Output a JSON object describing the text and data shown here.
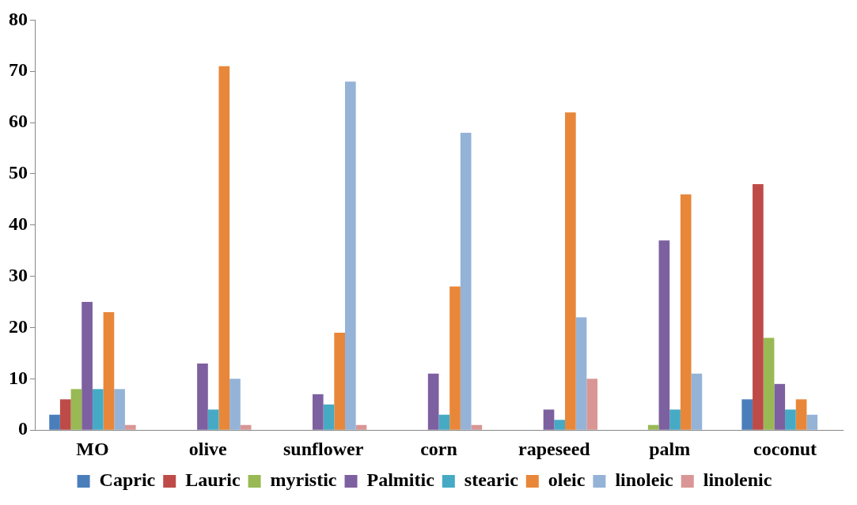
{
  "chart_data": {
    "type": "bar",
    "categories": [
      "MO",
      "olive",
      "sunflower",
      "corn",
      "rapeseed",
      "palm",
      "coconut"
    ],
    "series": [
      {
        "name": "Capric",
        "color": "#4a7ebb",
        "values": [
          3,
          0,
          0,
          0,
          0,
          0,
          6
        ]
      },
      {
        "name": "Lauric",
        "color": "#be4b48",
        "values": [
          6,
          0,
          0,
          0,
          0,
          0,
          48
        ]
      },
      {
        "name": "myristic",
        "color": "#98b954",
        "values": [
          8,
          0,
          0,
          0,
          0,
          1,
          18
        ]
      },
      {
        "name": "Palmitic",
        "color": "#7d60a0",
        "values": [
          25,
          13,
          7,
          11,
          4,
          37,
          9
        ]
      },
      {
        "name": "stearic",
        "color": "#46aac5",
        "values": [
          8,
          4,
          5,
          3,
          2,
          4,
          4
        ]
      },
      {
        "name": "oleic",
        "color": "#e8873a",
        "values": [
          23,
          71,
          19,
          28,
          62,
          46,
          6
        ]
      },
      {
        "name": "linoleic",
        "color": "#95b3d7",
        "values": [
          8,
          10,
          68,
          58,
          22,
          11,
          3
        ]
      },
      {
        "name": "linolenic",
        "color": "#d99694",
        "values": [
          1,
          1,
          1,
          1,
          10,
          0,
          0
        ]
      }
    ],
    "ylim": [
      0,
      80
    ],
    "yticks": [
      0,
      10,
      20,
      30,
      40,
      50,
      60,
      70,
      80
    ],
    "grid": false,
    "legend": "bottom"
  }
}
